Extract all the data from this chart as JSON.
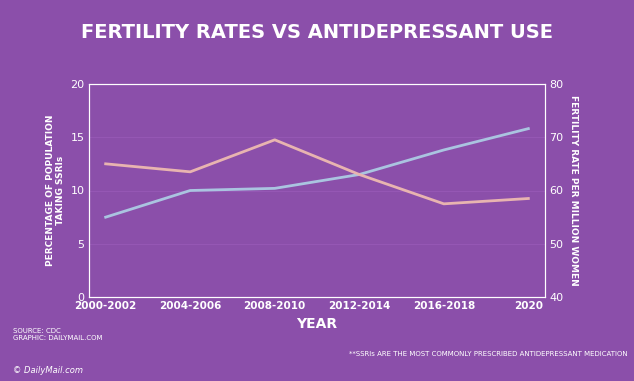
{
  "title": "FERTILITY RATES VS ANTIDEPRESSANT USE",
  "title_bg_color": "#111111",
  "title_text_color": "#ffffff",
  "bg_color": "#8b4faa",
  "plot_bg_color": "#8b4faa",
  "xlabel": "YEAR",
  "ylabel_left": "PERCENTAGE OF POPULATION\nTAKING SSRIs",
  "ylabel_right": "FERTILITY RATE PER MILLION WOMEN",
  "x_labels": [
    "2000-2002",
    "2004-2006",
    "2008-2010",
    "2012-2014",
    "2016-2018",
    "2020"
  ],
  "x_values": [
    0,
    1,
    2,
    3,
    4,
    5
  ],
  "ssri_values": [
    7.5,
    10.0,
    10.2,
    11.5,
    13.8,
    15.8
  ],
  "fertility_values": [
    65.0,
    63.5,
    69.5,
    63.0,
    57.5,
    58.5
  ],
  "ssri_color": "#aac4e0",
  "fertility_color": "#e8b4b0",
  "ylim_left": [
    0,
    20
  ],
  "ylim_right": [
    40,
    80
  ],
  "yticks_left": [
    0,
    5,
    10,
    15,
    20
  ],
  "yticks_right": [
    40,
    50,
    60,
    70,
    80
  ],
  "axis_color": "#ffffff",
  "tick_color": "#ffffff",
  "source_text": "SOURCE: CDC\nGRAPHIC: DAILYMAIL.COM",
  "footnote_text": "**SSRIs ARE THE MOST COMMONLY PRESCRIBED ANTIDEPRESSANT MEDICATION",
  "watermark": "© DailyMail.com",
  "font_color": "#ffffff",
  "line_width": 2.0
}
